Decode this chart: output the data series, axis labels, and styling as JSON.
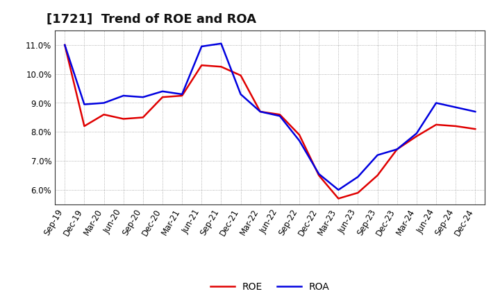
{
  "title": "[1721]  Trend of ROE and ROA",
  "x_labels": [
    "Sep-19",
    "Dec-19",
    "Mar-20",
    "Jun-20",
    "Sep-20",
    "Dec-20",
    "Mar-21",
    "Jun-21",
    "Sep-21",
    "Dec-21",
    "Mar-22",
    "Jun-22",
    "Sep-22",
    "Dec-22",
    "Mar-23",
    "Jun-23",
    "Sep-23",
    "Dec-23",
    "Mar-24",
    "Jun-24",
    "Sep-24",
    "Dec-24"
  ],
  "roe": [
    11.0,
    8.2,
    8.6,
    8.45,
    8.5,
    9.2,
    9.25,
    10.3,
    10.25,
    9.95,
    8.7,
    8.6,
    7.9,
    6.5,
    5.7,
    5.9,
    6.5,
    7.4,
    7.85,
    8.25,
    8.2,
    8.1
  ],
  "roa": [
    11.0,
    8.95,
    9.0,
    9.25,
    9.2,
    9.4,
    9.3,
    10.95,
    11.05,
    9.3,
    8.7,
    8.55,
    7.7,
    6.55,
    6.0,
    6.45,
    7.2,
    7.4,
    7.95,
    9.0,
    8.85,
    8.7
  ],
  "roe_color": "#e00000",
  "roa_color": "#0000e0",
  "background_color": "#ffffff",
  "plot_bg_color": "#ffffff",
  "grid_color": "#999999",
  "ylim": [
    5.5,
    11.5
  ],
  "yticks": [
    6.0,
    7.0,
    8.0,
    9.0,
    10.0,
    11.0
  ],
  "title_fontsize": 13,
  "legend_fontsize": 10,
  "tick_fontsize": 8.5,
  "linewidth": 1.8
}
